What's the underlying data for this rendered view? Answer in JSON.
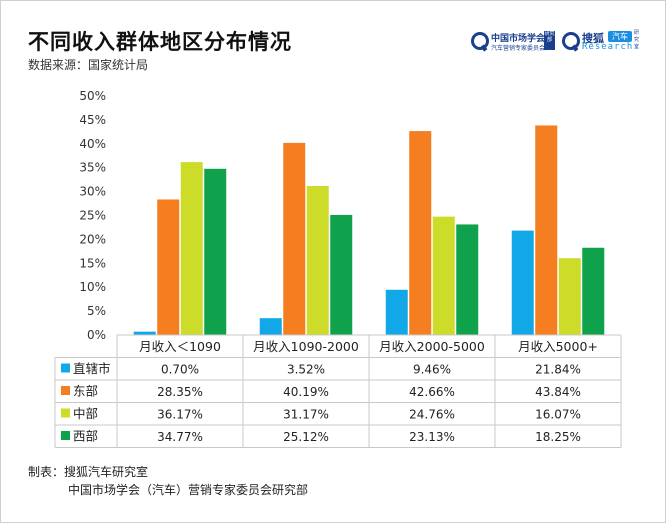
{
  "title": "不同收入群体地区分布情况",
  "source": "数据来源：国家统计局",
  "logo_left": {
    "line1": "中国市场学会",
    "line2": "汽车营销专家委员会",
    "tag": "研究部"
  },
  "logo_right": {
    "name": "搜狐",
    "badge": "汽车",
    "brand": "Research",
    "side": "研究室"
  },
  "footer": {
    "label": "制表：",
    "line1": "搜狐汽车研究室",
    "line2": "中国市场学会（汽车）营销专家委员会研究部"
  },
  "chart_data": {
    "type": "bar",
    "categories": [
      "月收入＜1090",
      "月收入1090-2000",
      "月收入2000-5000",
      "月收入5000+"
    ],
    "series": [
      {
        "name": "直辖市",
        "color": "#12a8e8",
        "values": [
          0.7,
          3.52,
          9.46,
          21.84
        ],
        "labels": [
          "0.70%",
          "3.52%",
          "9.46%",
          "21.84%"
        ]
      },
      {
        "name": "东部",
        "color": "#f47e20",
        "values": [
          28.35,
          40.19,
          42.66,
          43.84
        ],
        "labels": [
          "28.35%",
          "40.19%",
          "42.66%",
          "43.84%"
        ]
      },
      {
        "name": "中部",
        "color": "#cddc28",
        "values": [
          36.17,
          31.17,
          24.76,
          16.07
        ],
        "labels": [
          "36.17%",
          "31.17%",
          "24.76%",
          "16.07%"
        ]
      },
      {
        "name": "西部",
        "color": "#0fa14b",
        "values": [
          34.77,
          25.12,
          23.13,
          18.25
        ],
        "labels": [
          "34.77%",
          "25.12%",
          "23.13%",
          "18.25%"
        ]
      }
    ],
    "ylim": [
      0,
      50
    ],
    "yticks": [
      "0%",
      "5%",
      "10%",
      "15%",
      "20%",
      "25%",
      "30%",
      "35%",
      "40%",
      "45%",
      "50%"
    ],
    "grid": false,
    "legend": "data-table"
  }
}
